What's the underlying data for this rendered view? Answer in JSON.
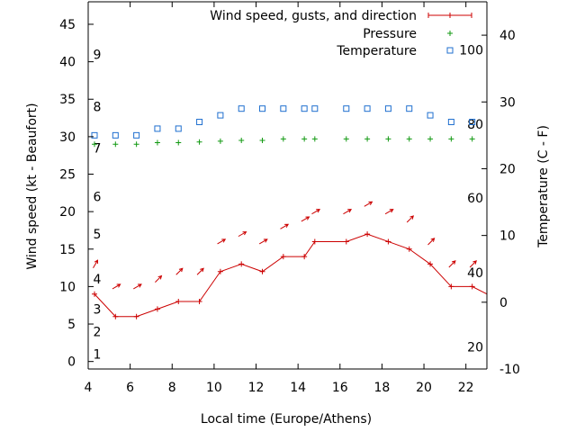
{
  "chart_data": {
    "type": "line",
    "xlabel": "Local time (Europe/Athens)",
    "ylabel": "Wind speed (kt - Beaufort)",
    "y2label": "Temperature (C - F)",
    "xlim": [
      4,
      23
    ],
    "ylim": [
      -1,
      48
    ],
    "y2lim": [
      -10,
      45
    ],
    "x_ticks": [
      4,
      6,
      8,
      10,
      12,
      14,
      16,
      18,
      20,
      22
    ],
    "y_ticks": [
      0,
      5,
      10,
      15,
      20,
      25,
      30,
      35,
      40,
      45
    ],
    "y2_ticks": [
      -10,
      0,
      10,
      20,
      30,
      40
    ],
    "beaufort_labels": [
      {
        "label": "1",
        "y": 1
      },
      {
        "label": "2",
        "y": 4
      },
      {
        "label": "3",
        "y": 7
      },
      {
        "label": "4",
        "y": 11
      },
      {
        "label": "5",
        "y": 17
      },
      {
        "label": "6",
        "y": 22
      },
      {
        "label": "7",
        "y": 28.5
      },
      {
        "label": "8",
        "y": 34
      },
      {
        "label": "9",
        "y": 41
      }
    ],
    "fahrenheit_labels": [
      {
        "label": "20",
        "y2": -6.7
      },
      {
        "label": "40",
        "y2": 4.4
      },
      {
        "label": "60",
        "y2": 15.6
      },
      {
        "label": "80",
        "y2": 26.7
      },
      {
        "label": "100",
        "y2": 37.8
      }
    ],
    "legend_position": "top-right",
    "series": [
      {
        "name": "Wind speed, gusts, and direction",
        "color": "#cc0000",
        "x": [
          4.3,
          5.3,
          6.3,
          7.3,
          8.3,
          9.3,
          10.3,
          11.3,
          12.3,
          13.3,
          14.3,
          14.8,
          16.3,
          17.3,
          18.3,
          19.3,
          20.3,
          21.3,
          22.3,
          23
        ],
        "values": [
          9,
          6,
          6,
          7,
          8,
          8,
          12,
          13,
          12,
          14,
          14,
          16,
          16,
          17,
          16,
          15,
          13,
          10,
          10,
          9
        ],
        "gusts": [
          13,
          10,
          10,
          11,
          12,
          12,
          16,
          17,
          16,
          18,
          19,
          20,
          20,
          21,
          20,
          19,
          16,
          13,
          13,
          null
        ],
        "direction_arrow_angle_deg": [
          60,
          30,
          30,
          45,
          45,
          45,
          30,
          30,
          30,
          30,
          30,
          30,
          30,
          30,
          30,
          45,
          45,
          45,
          45,
          45
        ]
      },
      {
        "name": "Pressure",
        "color": "#119911",
        "x": [
          4.3,
          5.3,
          6.3,
          7.3,
          8.3,
          9.3,
          10.3,
          11.3,
          12.3,
          13.3,
          14.3,
          14.8,
          16.3,
          17.3,
          18.3,
          19.3,
          20.3,
          21.3,
          22.3
        ],
        "values": [
          29,
          29,
          29,
          29.2,
          29.2,
          29.3,
          29.4,
          29.5,
          29.5,
          29.7,
          29.7,
          29.7,
          29.7,
          29.7,
          29.7,
          29.7,
          29.7,
          29.7,
          29.7
        ]
      },
      {
        "name": "Temperature",
        "color": "#1f6fcf",
        "axis": "y2",
        "x": [
          4.3,
          5.3,
          6.3,
          7.3,
          8.3,
          9.3,
          10.3,
          11.3,
          12.3,
          13.3,
          14.3,
          14.8,
          16.3,
          17.3,
          18.3,
          19.3,
          20.3,
          21.3,
          22.3
        ],
        "values": [
          25,
          25,
          25,
          26,
          26,
          27,
          28,
          29,
          29,
          29,
          29,
          29,
          29,
          29,
          29,
          29,
          28,
          27,
          27
        ]
      }
    ]
  }
}
